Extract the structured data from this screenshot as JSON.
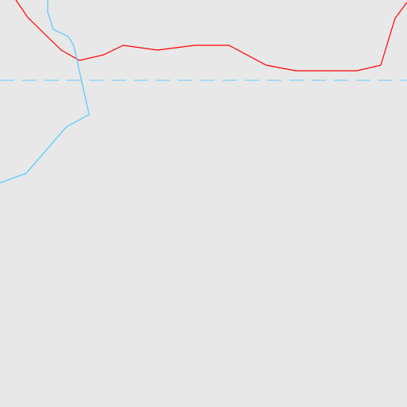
{
  "map": {
    "background_color": "#e8e8e8",
    "features": [
      {
        "name": "red-boundary-line",
        "kind": "boundary",
        "color": "#ff0000",
        "style": "solid"
      },
      {
        "name": "blue-river-line",
        "kind": "waterway",
        "color": "#66ccff",
        "style": "solid"
      },
      {
        "name": "dashed-blue-line",
        "kind": "waterway-dashed",
        "color": "#66ccff",
        "style": "dashed"
      }
    ]
  }
}
